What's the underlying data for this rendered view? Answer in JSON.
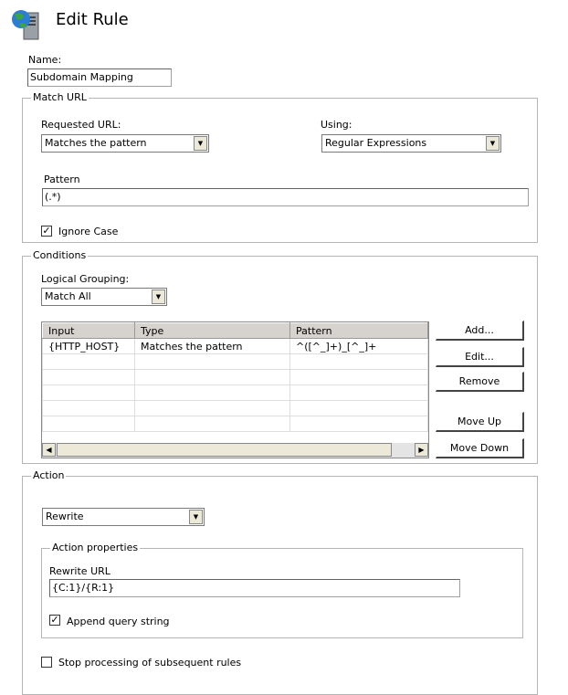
{
  "header": {
    "title": "Edit Rule",
    "icon": "globe-server-icon"
  },
  "name": {
    "label": "Name:",
    "value": "Subdomain Mapping"
  },
  "match_url": {
    "legend": "Match URL",
    "requested_label": "Requested URL:",
    "requested_value": "Matches the pattern",
    "using_label": "Using:",
    "using_value": "Regular Expressions",
    "pattern_label": "Pattern",
    "pattern_value": "(.*)",
    "ignore_case_label": "Ignore Case",
    "ignore_case_checked": true
  },
  "conditions": {
    "legend": "Conditions",
    "grouping_label": "Logical Grouping:",
    "grouping_value": "Match All",
    "columns": [
      "Input",
      "Type",
      "Pattern"
    ],
    "rows": [
      [
        "{HTTP_HOST}",
        "Matches the pattern",
        "^([^_]+)_[^_]+"
      ]
    ],
    "buttons": {
      "add": "Add...",
      "edit": "Edit...",
      "remove": "Remove",
      "move_up": "Move Up",
      "move_down": "Move Down"
    }
  },
  "action": {
    "legend": "Action",
    "type_value": "Rewrite",
    "props_legend": "Action properties",
    "rewrite_label": "Rewrite URL",
    "rewrite_value": "{C:1}/{R:1}",
    "append_label": "Append query string",
    "append_checked": true,
    "stop_label": "Stop processing of subsequent rules",
    "stop_checked": false
  }
}
